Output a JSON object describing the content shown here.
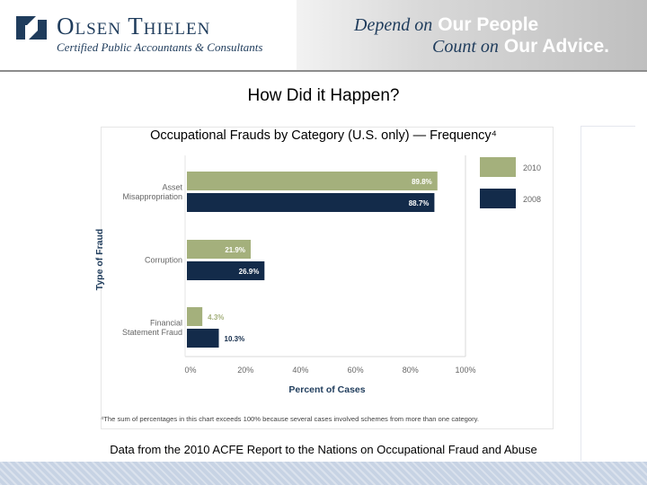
{
  "header": {
    "company": "Olsen Thielen",
    "tagline": "Certified Public Accountants & Consultants",
    "slogan_line1_a": "Depend on",
    "slogan_line1_b": "Our People",
    "slogan_line2_a": "Count on",
    "slogan_line2_b": "Our Advice."
  },
  "slide": {
    "title": "How Did it Happen?",
    "source": "Data from the 2010 ACFE Report to the Nations on Occupational Fraud and Abuse"
  },
  "chart_data": {
    "type": "bar",
    "orientation": "horizontal",
    "title": "Occupational Frauds by Category (U.S. only) — Frequency⁴",
    "xlabel": "Percent of Cases",
    "ylabel": "Type of Fraud",
    "categories": [
      [
        "Asset",
        "Misappropriation"
      ],
      [
        "Corruption"
      ],
      [
        "Financial",
        "Statement Fraud"
      ]
    ],
    "series": [
      {
        "name": "2010",
        "values": [
          89.8,
          21.9,
          4.3
        ],
        "labels": [
          "89.8%",
          "21.9%",
          "4.3%"
        ],
        "color": "#a4b07c"
      },
      {
        "name": "2008",
        "values": [
          88.7,
          26.9,
          10.3
        ],
        "labels": [
          "88.7%",
          "26.9%",
          "10.3%"
        ],
        "color": "#132b4a"
      }
    ],
    "xlim": [
      0,
      100
    ],
    "xticks": [
      0,
      20,
      40,
      60,
      80,
      100
    ],
    "xtick_labels": [
      "0%",
      "20%",
      "40%",
      "60%",
      "80%",
      "100%"
    ],
    "legend_position": "right",
    "grid": false,
    "footnote": "⁴The sum of percentages in this chart exceeds 100% because several cases involved schemes from more than one category."
  },
  "colors": {
    "brand_navy": "#1f3c5c",
    "bar_2010": "#a4b07c",
    "bar_2008": "#132b4a",
    "footer": "#c7d3e4"
  }
}
